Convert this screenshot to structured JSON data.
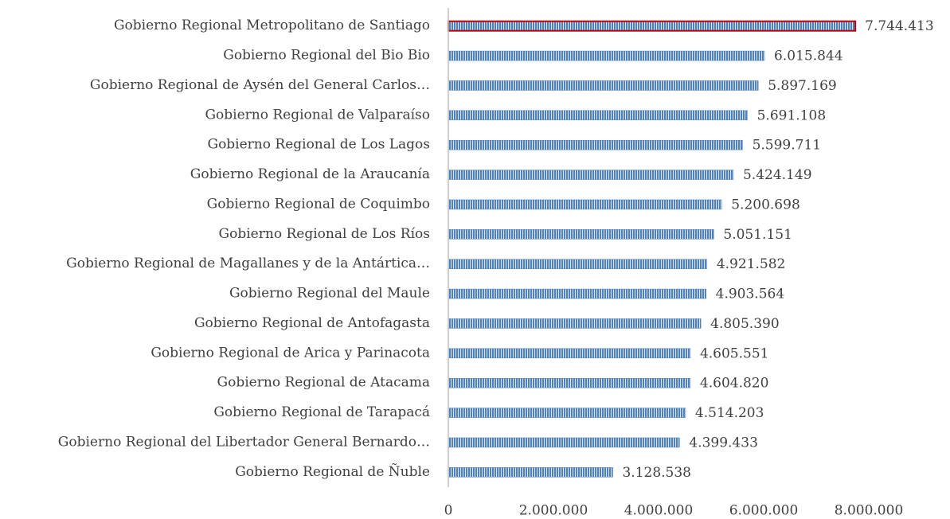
{
  "chart_data": {
    "type": "barh",
    "categories": [
      "Gobierno Regional Metropolitano de Santiago",
      "Gobierno Regional del Bio Bio",
      "Gobierno Regional de Aysén del General Carlos…",
      "Gobierno Regional de Valparaíso",
      "Gobierno Regional de Los Lagos",
      "Gobierno Regional de la Araucanía",
      "Gobierno Regional de Coquimbo",
      "Gobierno Regional de Los Ríos",
      "Gobierno Regional de Magallanes y de la Antártica…",
      "Gobierno Regional del Maule",
      "Gobierno Regional de Antofagasta",
      "Gobierno Regional de Arica y Parinacota",
      "Gobierno Regional de Atacama",
      "Gobierno Regional de Tarapacá",
      "Gobierno Regional del Libertador General Bernardo…",
      "Gobierno Regional de Ñuble"
    ],
    "values": [
      7744413,
      6015844,
      5897169,
      5691108,
      5599711,
      5424149,
      5200698,
      5051151,
      4921582,
      4903564,
      4805390,
      4605551,
      4604820,
      4514203,
      4399433,
      3128538
    ],
    "value_labels": [
      "7.744.413",
      "6.015.844",
      "5.897.169",
      "5.691.108",
      "5.599.711",
      "5.424.149",
      "5.200.698",
      "5.051.151",
      "4.921.582",
      "4.903.564",
      "4.805.390",
      "4.605.551",
      "4.604.820",
      "4.514.203",
      "4.399.433",
      "3.128.538"
    ],
    "color": "#4f81bd",
    "edge_colors": [
      "#c00000",
      "#4f81bd",
      "#4f81bd",
      "#4f81bd",
      "#4f81bd",
      "#4f81bd",
      "#4f81bd",
      "#4f81bd",
      "#4f81bd",
      "#4f81bd",
      "#4f81bd",
      "#4f81bd",
      "#4f81bd",
      "#4f81bd",
      "#4f81bd",
      "#4f81bd"
    ],
    "xlim": [
      0,
      8150000
    ],
    "xticks": [
      0,
      {
        "value": 2000000,
        "label": "2.000.000"
      },
      {
        "value": 4000000,
        "label": "4.000.000"
      },
      {
        "value": 6000000,
        "label": "6.000.000"
      },
      {
        "value": 8000000,
        "label": "8.000.000"
      }
    ],
    "grid": false
  }
}
